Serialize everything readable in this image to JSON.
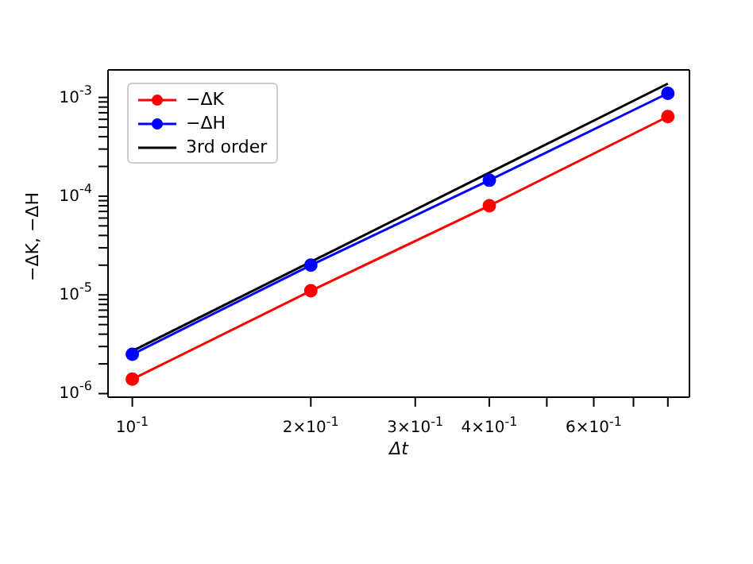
{
  "chart_data": {
    "type": "line",
    "xlabel": "Δt",
    "ylabel": "−ΔK, −ΔH",
    "log": "xy",
    "legend": "top left",
    "line_style": "solid",
    "xlim": [
      0.091,
      0.87
    ],
    "ylim": [
      9.2e-07,
      0.0019
    ],
    "xticks": [
      {
        "value": 0.1,
        "label": "10$^{-1}$"
      },
      {
        "value": 0.2,
        "label": "2×10$^{-1}$"
      },
      {
        "value": 0.3,
        "label": "3×10$^{-1}$"
      },
      {
        "value": 0.4,
        "label": "4×10$^{-1}$"
      },
      {
        "value": 0.5,
        "label": null
      },
      {
        "value": 0.6,
        "label": "6×10$^{-1}$"
      },
      {
        "value": 0.7,
        "label": null
      },
      {
        "value": 0.8,
        "label": null
      }
    ],
    "yticks": [
      {
        "value": 1e-06,
        "label": "10$^{-6}$"
      },
      {
        "value": 2e-06,
        "label": null
      },
      {
        "value": 3e-06,
        "label": null
      },
      {
        "value": 4e-06,
        "label": null
      },
      {
        "value": 5e-06,
        "label": null
      },
      {
        "value": 6e-06,
        "label": null
      },
      {
        "value": 7e-06,
        "label": null
      },
      {
        "value": 8e-06,
        "label": null
      },
      {
        "value": 9e-06,
        "label": null
      },
      {
        "value": 1e-05,
        "label": "10$^{-5}$"
      },
      {
        "value": 2e-05,
        "label": null
      },
      {
        "value": 3e-05,
        "label": null
      },
      {
        "value": 4e-05,
        "label": null
      },
      {
        "value": 5e-05,
        "label": null
      },
      {
        "value": 6e-05,
        "label": null
      },
      {
        "value": 7e-05,
        "label": null
      },
      {
        "value": 8e-05,
        "label": null
      },
      {
        "value": 9e-05,
        "label": null
      },
      {
        "value": 0.0001,
        "label": "10$^{-4}$"
      },
      {
        "value": 0.0002,
        "label": null
      },
      {
        "value": 0.0003,
        "label": null
      },
      {
        "value": 0.0004,
        "label": null
      },
      {
        "value": 0.0005,
        "label": null
      },
      {
        "value": 0.0006,
        "label": null
      },
      {
        "value": 0.0007,
        "label": null
      },
      {
        "value": 0.0008,
        "label": null
      },
      {
        "value": 0.0009,
        "label": null
      },
      {
        "value": 0.001,
        "label": "10$^{-3}$"
      }
    ],
    "x": [
      0.1,
      0.2,
      0.4,
      0.8
    ],
    "series": [
      {
        "name": "−ΔK",
        "color": "#ff0000",
        "marker": "circle",
        "values": [
          1.4e-06,
          1.1e-05,
          8e-05,
          0.00064
        ]
      },
      {
        "name": "−ΔH",
        "color": "#0000ff",
        "marker": "circle",
        "values": [
          2.5e-06,
          2e-05,
          0.000145,
          0.0011
        ]
      },
      {
        "name": "3rd order",
        "color": "#000000",
        "marker": "none",
        "values": [
          2.7e-06,
          2.16e-05,
          0.000173,
          0.00138
        ]
      }
    ]
  }
}
